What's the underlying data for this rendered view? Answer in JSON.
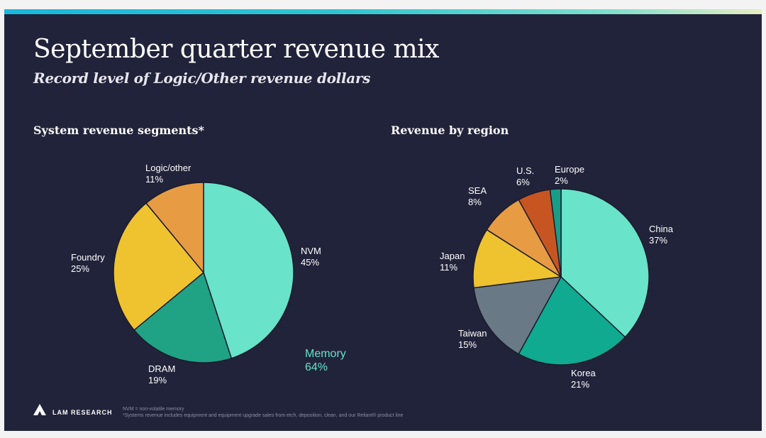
{
  "slide": {
    "title": "September quarter revenue mix",
    "subtitle": "Record level of Logic/Other revenue dollars",
    "memory_label": "Memory",
    "memory_value": "64%",
    "logo_text": "LAM RESEARCH",
    "footnote_1": "NVM = non-volatile memory",
    "footnote_2": "*Systems revenue includes equipment and equipment upgrade sales from etch, deposition, clean, and our Reliant® product line"
  },
  "colors": {
    "background": "#21233a",
    "accent_teal": "#64e3c9"
  },
  "chart_data": [
    {
      "type": "pie",
      "title": "System revenue segments*",
      "start_angle_deg": 0,
      "direction": "clockwise",
      "slices": [
        {
          "label": "NVM",
          "value": 45,
          "display": "45%",
          "color": "#69e3c9"
        },
        {
          "label": "DRAM",
          "value": 19,
          "display": "19%",
          "color": "#1fa384"
        },
        {
          "label": "Foundry",
          "value": 25,
          "display": "25%",
          "color": "#efc22f"
        },
        {
          "label": "Logic/other",
          "value": 11,
          "display": "11%",
          "color": "#e79c44"
        }
      ]
    },
    {
      "type": "pie",
      "title": "Revenue by region",
      "start_angle_deg": 0,
      "direction": "clockwise",
      "slices": [
        {
          "label": "China",
          "value": 37,
          "display": "37%",
          "color": "#69e3c9"
        },
        {
          "label": "Korea",
          "value": 21,
          "display": "21%",
          "color": "#0faa90"
        },
        {
          "label": "Taiwan",
          "value": 15,
          "display": "15%",
          "color": "#697985"
        },
        {
          "label": "Japan",
          "value": 11,
          "display": "11%",
          "color": "#efc22f"
        },
        {
          "label": "SEA",
          "value": 8,
          "display": "8%",
          "color": "#e79c44"
        },
        {
          "label": "U.S.",
          "value": 6,
          "display": "6%",
          "color": "#c75522"
        },
        {
          "label": "Europe",
          "value": 2,
          "display": "2%",
          "color": "#1a9d86"
        }
      ]
    }
  ]
}
